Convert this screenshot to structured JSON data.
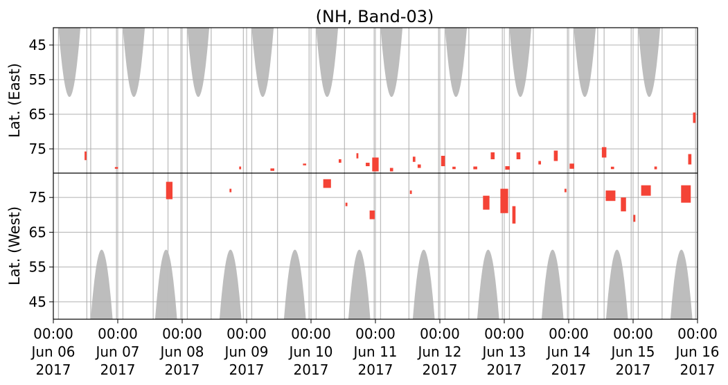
{
  "chart_data": {
    "type": "heatmap",
    "title": "(NH, Band-03)",
    "colors": {
      "observation_coverage": "#bdbdbd",
      "event": "#f44336",
      "grid": "#b0b0b0",
      "axes": "#000000"
    },
    "grid": true,
    "x_axis": {
      "range": [
        "2017-06-06T00:00",
        "2017-06-16T00:00"
      ],
      "tick_labels": [
        {
          "time": "00:00",
          "date": "Jun 06",
          "year": "2017"
        },
        {
          "time": "00:00",
          "date": "Jun 07",
          "year": "2017"
        },
        {
          "time": "00:00",
          "date": "Jun 08",
          "year": "2017"
        },
        {
          "time": "00:00",
          "date": "Jun 09",
          "year": "2017"
        },
        {
          "time": "00:00",
          "date": "Jun 10",
          "year": "2017"
        },
        {
          "time": "00:00",
          "date": "Jun 11",
          "year": "2017"
        },
        {
          "time": "00:00",
          "date": "Jun 12",
          "year": "2017"
        },
        {
          "time": "00:00",
          "date": "Jun 13",
          "year": "2017"
        },
        {
          "time": "00:00",
          "date": "Jun 14",
          "year": "2017"
        },
        {
          "time": "00:00",
          "date": "Jun 15",
          "year": "2017"
        },
        {
          "time": "00:00",
          "date": "Jun 16",
          "year": "2017"
        }
      ]
    },
    "panels": [
      {
        "ylabel": "Lat. (East)",
        "ylim": [
          40,
          82
        ],
        "yticks": [
          "45",
          "55",
          "65",
          "75"
        ]
      },
      {
        "ylabel": "Lat. (West)",
        "ylim": [
          82,
          40
        ],
        "yticks": [
          "75",
          "65",
          "55",
          "45"
        ]
      }
    ],
    "coverage_lobes": {
      "east": {
        "centers_day": [
          0.25,
          1.25,
          2.25,
          3.25,
          4.25,
          5.25,
          6.25,
          7.25,
          8.25,
          9.25
        ],
        "half_width_day": 0.17,
        "min_lat": 60
      },
      "west": {
        "centers_day": [
          0.75,
          1.75,
          2.75,
          3.75,
          4.75,
          5.75,
          6.75,
          7.75,
          8.75,
          9.75
        ],
        "half_width_day": 0.17,
        "min_lat": 60
      }
    },
    "coverage_lines_day": [
      0.08,
      0.52,
      0.58,
      0.98,
      1.08,
      1.55,
      1.78,
      1.98,
      2.08,
      2.45,
      2.95,
      3.08,
      3.48,
      3.97,
      4.08,
      4.52,
      4.98,
      5.08,
      5.52,
      5.98,
      6.08,
      6.45,
      6.97,
      7.08,
      7.45,
      7.98,
      8.08,
      8.45,
      8.55,
      8.97,
      9.08,
      9.45,
      9.97
    ],
    "events": [
      {
        "panel": "east",
        "day": 0.5,
        "lat": 77.0,
        "dd": 0.03,
        "dl": 2.5
      },
      {
        "panel": "east",
        "day": 0.98,
        "lat": 80.5,
        "dd": 0.05,
        "dl": 0.5
      },
      {
        "panel": "east",
        "day": 2.9,
        "lat": 80.5,
        "dd": 0.03,
        "dl": 0.8
      },
      {
        "panel": "east",
        "day": 3.4,
        "lat": 81.0,
        "dd": 0.06,
        "dl": 0.7
      },
      {
        "panel": "east",
        "day": 3.9,
        "lat": 79.5,
        "dd": 0.05,
        "dl": 0.5
      },
      {
        "panel": "east",
        "day": 4.45,
        "lat": 78.5,
        "dd": 0.04,
        "dl": 1.0
      },
      {
        "panel": "east",
        "day": 4.88,
        "lat": 79.5,
        "dd": 0.06,
        "dl": 1.0
      },
      {
        "panel": "east",
        "day": 5.0,
        "lat": 79.5,
        "dd": 0.1,
        "dl": 4.0
      },
      {
        "panel": "east",
        "day": 4.72,
        "lat": 77.0,
        "dd": 0.03,
        "dl": 1.5
      },
      {
        "panel": "east",
        "day": 5.25,
        "lat": 81.0,
        "dd": 0.05,
        "dl": 1.0
      },
      {
        "panel": "east",
        "day": 5.6,
        "lat": 78.0,
        "dd": 0.04,
        "dl": 1.5
      },
      {
        "panel": "east",
        "day": 5.68,
        "lat": 80.0,
        "dd": 0.05,
        "dl": 1.0
      },
      {
        "panel": "east",
        "day": 6.05,
        "lat": 78.5,
        "dd": 0.06,
        "dl": 3.0
      },
      {
        "panel": "east",
        "day": 6.22,
        "lat": 80.5,
        "dd": 0.05,
        "dl": 0.7
      },
      {
        "panel": "east",
        "day": 6.55,
        "lat": 80.5,
        "dd": 0.06,
        "dl": 0.8
      },
      {
        "panel": "east",
        "day": 6.82,
        "lat": 77.0,
        "dd": 0.06,
        "dl": 2.0
      },
      {
        "panel": "east",
        "day": 7.05,
        "lat": 80.5,
        "dd": 0.07,
        "dl": 1.0
      },
      {
        "panel": "east",
        "day": 7.22,
        "lat": 77.0,
        "dd": 0.06,
        "dl": 2.0
      },
      {
        "panel": "east",
        "day": 7.55,
        "lat": 79.0,
        "dd": 0.04,
        "dl": 1.0
      },
      {
        "panel": "east",
        "day": 7.8,
        "lat": 77.0,
        "dd": 0.06,
        "dl": 3.0
      },
      {
        "panel": "east",
        "day": 8.05,
        "lat": 80.0,
        "dd": 0.07,
        "dl": 1.5
      },
      {
        "panel": "east",
        "day": 8.55,
        "lat": 76.0,
        "dd": 0.07,
        "dl": 3.0
      },
      {
        "panel": "east",
        "day": 8.68,
        "lat": 80.5,
        "dd": 0.05,
        "dl": 0.7
      },
      {
        "panel": "east",
        "day": 9.35,
        "lat": 80.5,
        "dd": 0.04,
        "dl": 0.8
      },
      {
        "panel": "east",
        "day": 9.88,
        "lat": 78.0,
        "dd": 0.05,
        "dl": 3.0
      },
      {
        "panel": "east",
        "day": 9.95,
        "lat": 66.0,
        "dd": 0.04,
        "dl": 3.0
      },
      {
        "panel": "west",
        "day": 1.8,
        "lat": 77.0,
        "dd": 0.1,
        "dl": 5.0
      },
      {
        "panel": "west",
        "day": 2.75,
        "lat": 77.0,
        "dd": 0.03,
        "dl": 1.0
      },
      {
        "panel": "west",
        "day": 4.25,
        "lat": 79.0,
        "dd": 0.12,
        "dl": 2.5
      },
      {
        "panel": "west",
        "day": 4.55,
        "lat": 73.0,
        "dd": 0.03,
        "dl": 1.0
      },
      {
        "panel": "west",
        "day": 4.95,
        "lat": 70.0,
        "dd": 0.08,
        "dl": 2.5
      },
      {
        "panel": "west",
        "day": 5.55,
        "lat": 76.5,
        "dd": 0.03,
        "dl": 1.0
      },
      {
        "panel": "west",
        "day": 6.72,
        "lat": 73.5,
        "dd": 0.1,
        "dl": 4.0
      },
      {
        "panel": "west",
        "day": 7.0,
        "lat": 74.0,
        "dd": 0.12,
        "dl": 7.0
      },
      {
        "panel": "west",
        "day": 7.15,
        "lat": 70.0,
        "dd": 0.05,
        "dl": 5.0
      },
      {
        "panel": "west",
        "day": 7.95,
        "lat": 77.0,
        "dd": 0.03,
        "dl": 1.0
      },
      {
        "panel": "west",
        "day": 8.65,
        "lat": 75.5,
        "dd": 0.15,
        "dl": 3.0
      },
      {
        "panel": "west",
        "day": 8.85,
        "lat": 73.0,
        "dd": 0.08,
        "dl": 4.0
      },
      {
        "panel": "west",
        "day": 9.02,
        "lat": 69.0,
        "dd": 0.03,
        "dl": 2.0
      },
      {
        "panel": "west",
        "day": 9.2,
        "lat": 77.0,
        "dd": 0.15,
        "dl": 3.0
      },
      {
        "panel": "west",
        "day": 9.82,
        "lat": 76.0,
        "dd": 0.15,
        "dl": 5.0
      }
    ]
  }
}
